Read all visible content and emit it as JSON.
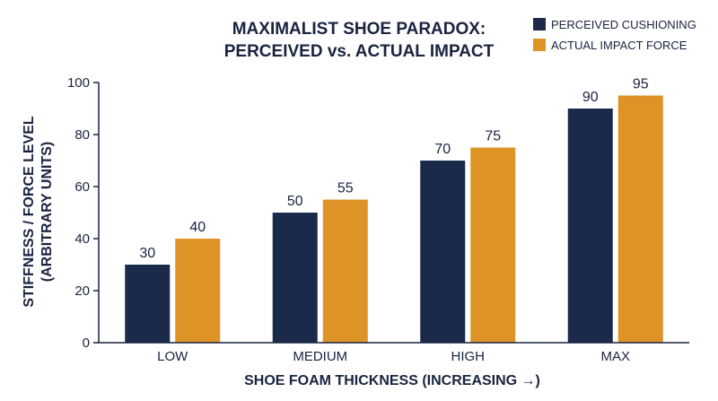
{
  "chart_data": {
    "type": "bar",
    "title": [
      "MAXIMALIST SHOE PARADOX:",
      "PERCEIVED vs. ACTUAL IMPACT"
    ],
    "xlabel": "SHOE FOAM THICKNESS (INCREASING →)",
    "ylabel": [
      "STIFFNESS / FORCE LEVEL",
      "(ARBITRARY UNITS)"
    ],
    "categories": [
      "LOW",
      "MEDIUM",
      "HIGH",
      "MAX"
    ],
    "series": [
      {
        "name": "PERCEIVED CUSHIONING",
        "color": "#1b2a4a",
        "values": [
          30,
          50,
          70,
          90
        ]
      },
      {
        "name": "ACTUAL IMPACT FORCE",
        "color": "#de9327",
        "values": [
          40,
          55,
          75,
          95
        ]
      }
    ],
    "ylim": [
      0,
      100
    ],
    "yticks": [
      0,
      20,
      40,
      60,
      80,
      100
    ],
    "grid": false,
    "legend_position": "top-right",
    "data_labels": true
  }
}
